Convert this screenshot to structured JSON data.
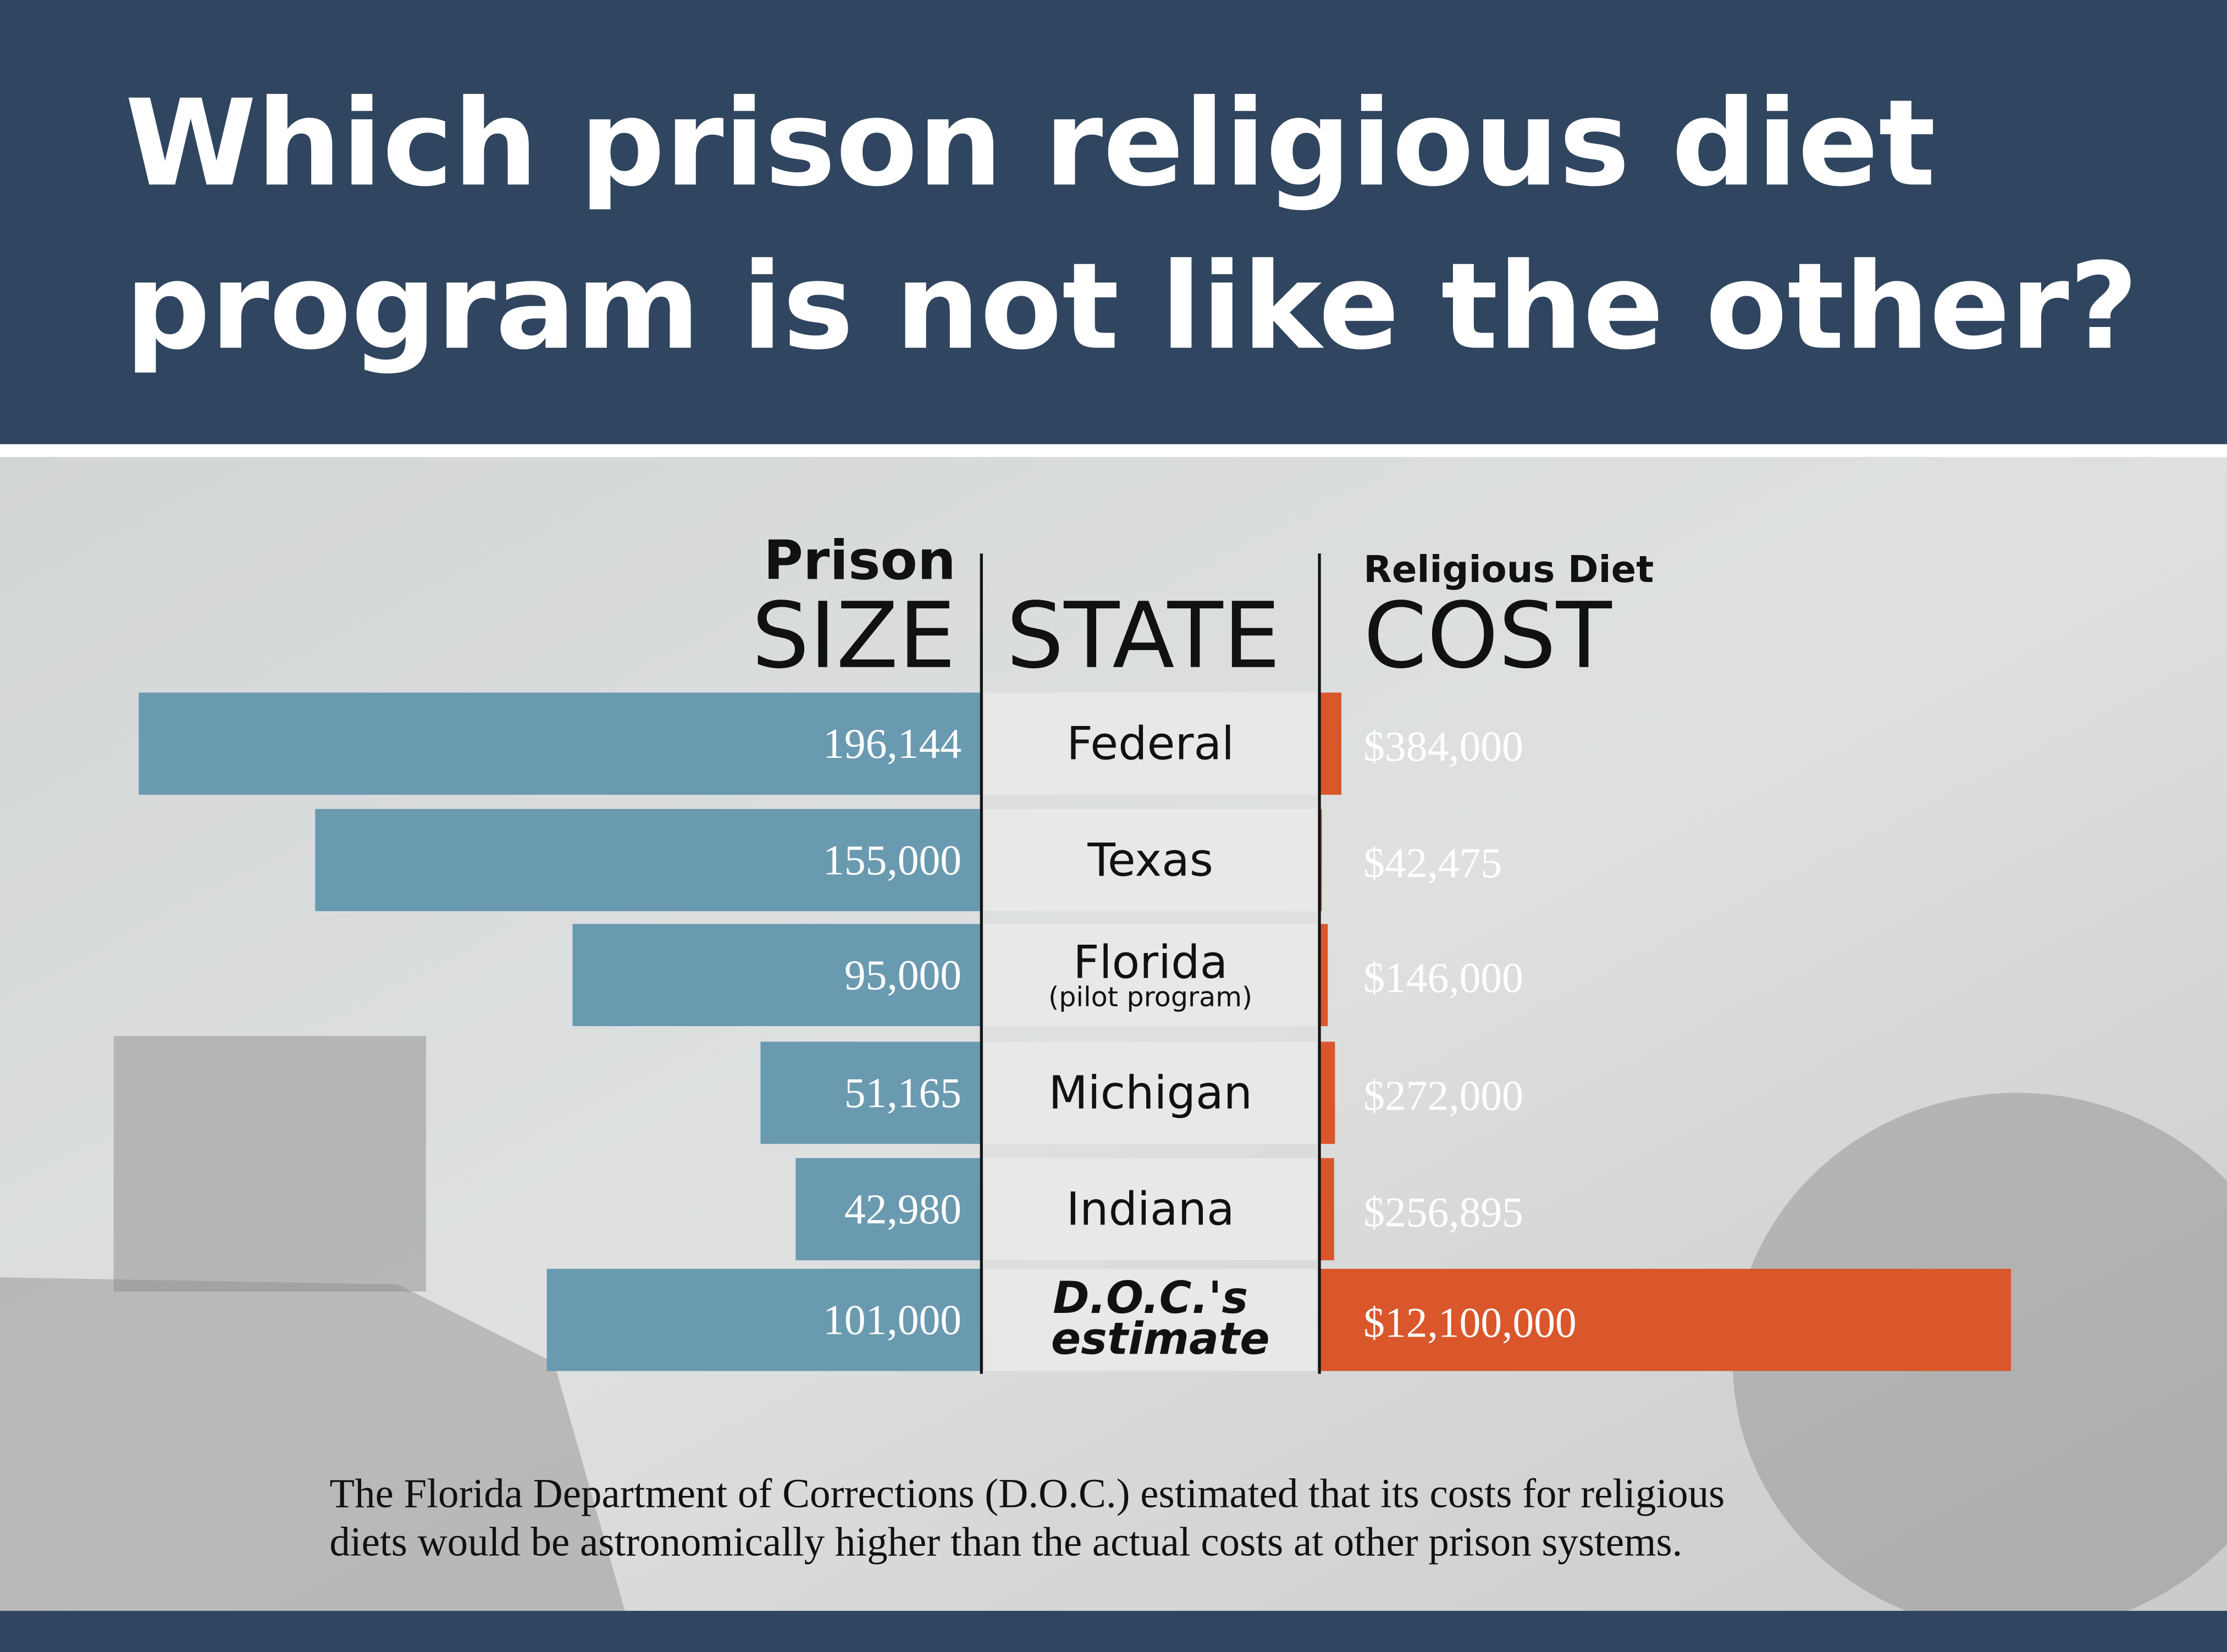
{
  "chart_data": {
    "type": "bar",
    "title": [
      "Which prison religious diet",
      "program is not like the other?"
    ],
    "category_label": "STATE",
    "categories": [
      "Federal",
      "Texas",
      "Florida",
      "Michigan",
      "Indiana",
      "D.O.C.'s estimate"
    ],
    "category_notes": [
      null,
      null,
      "(pilot program)",
      null,
      null,
      null
    ],
    "series": [
      {
        "name": "SIZE",
        "kicker": "Prison",
        "color": "#6a9ab0",
        "xlim": [
          0,
          200000
        ],
        "values": [
          196144,
          155000,
          95000,
          51165,
          42980,
          101000
        ],
        "value_labels": [
          "196,144",
          "155,000",
          "95,000",
          "51,165",
          "42,980",
          "101,000"
        ]
      },
      {
        "name": "COST",
        "kicker": "Religious Diet",
        "color": "#d9572b",
        "xlim": [
          0,
          12500000
        ],
        "values": [
          384000,
          42475,
          146000,
          272000,
          256895,
          12100000
        ],
        "value_labels": [
          "$384,000",
          "$42,475",
          "$146,000",
          "$272,000",
          "$256,895",
          "$12,100,000"
        ]
      }
    ],
    "footnote": [
      "The Florida Department of Corrections (D.O.C.) estimated that its costs for religious",
      "diets would be astronomically higher than the actual costs at other prison systems."
    ]
  }
}
